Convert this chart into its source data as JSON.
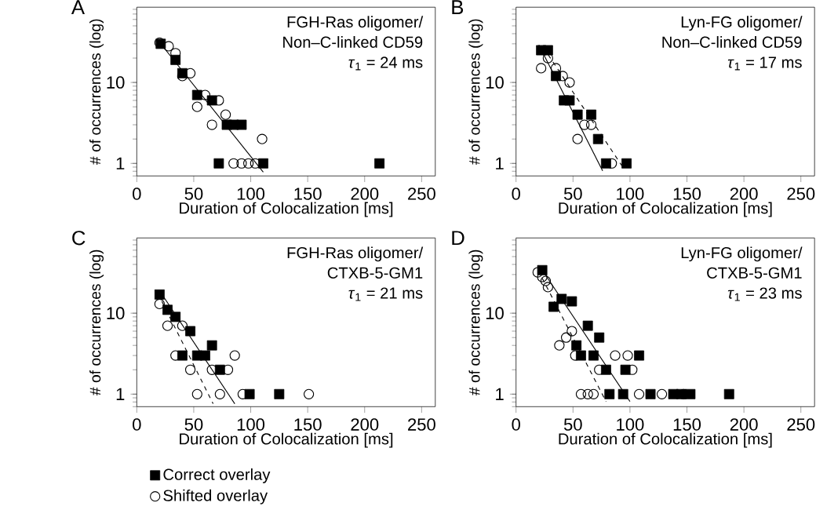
{
  "chart_data": [
    {
      "type": "scatter",
      "xlabel": "Duration of Colocalization  [ms]",
      "ylabel": "# of occurrences (log)",
      "annotations": [
        "A",
        "FGH-Ras oligomer/",
        "Non–C-linked CD59",
        "*τ*$_{1}$  = 24 ms"
      ],
      "xlim": [
        0,
        262
      ],
      "ylim": [
        0.7,
        85
      ],
      "xticks": [
        0,
        50,
        100,
        150,
        200,
        250
      ],
      "yticks": [
        1,
        10
      ],
      "log": "y",
      "series": [
        {
          "color": "#000000",
          "marker": "square",
          "x": [
            21,
            34,
            40,
            53,
            66,
            79,
            85,
            92,
            72,
            111,
            213
          ],
          "values": [
            30,
            19,
            13,
            7,
            6,
            3,
            3,
            3,
            1,
            1,
            1
          ]
        },
        {
          "color": "#000000",
          "marker": "circle",
          "x": [
            20,
            28,
            34,
            40,
            47,
            60,
            53,
            72,
            78,
            66,
            110,
            85,
            92,
            98,
            104
          ],
          "values": [
            31,
            28,
            23,
            12,
            13,
            7,
            5,
            6,
            4,
            3,
            2,
            1,
            1,
            1,
            1
          ]
        },
        {
          "type": "line",
          "color": "#000000",
          "line_style": "solid",
          "x": [
            18,
            111
          ],
          "values": [
            34,
            0.78
          ]
        }
      ]
    },
    {
      "type": "scatter",
      "xlabel": "Duration of Colocalization  [ms]",
      "ylabel": "# of occurrences (log)",
      "annotations": [
        "B",
        "Lyn-FG oligomer/",
        "Non–C-linked CD59",
        "*τ*$_{1}$ = 17 ms"
      ],
      "xlim": [
        0,
        262
      ],
      "ylim": [
        0.7,
        85
      ],
      "xticks": [
        0,
        50,
        100,
        150,
        200,
        250
      ],
      "yticks": [
        1,
        10
      ],
      "log": "y",
      "series": [
        {
          "color": "#000000",
          "marker": "square",
          "x": [
            22,
            28,
            35,
            42,
            47,
            54,
            66,
            72,
            79,
            97
          ],
          "values": [
            25,
            25,
            12,
            6,
            6,
            4,
            4,
            2,
            1,
            1
          ]
        },
        {
          "color": "#000000",
          "marker": "circle",
          "x": [
            22,
            28,
            35,
            41,
            47,
            54,
            60,
            66,
            84
          ],
          "values": [
            15,
            20,
            15,
            12,
            10,
            2,
            3,
            3,
            1
          ]
        },
        {
          "type": "line",
          "color": "#000000",
          "line_style": "solid",
          "x": [
            20,
            76
          ],
          "values": [
            29,
            0.81
          ]
        },
        {
          "type": "line",
          "color": "#000000",
          "line_style": "dashed",
          "x": [
            24,
            93
          ],
          "values": [
            27,
            0.93
          ]
        }
      ]
    },
    {
      "type": "scatter",
      "xlabel": "Duration of Colocalization  [ms]",
      "ylabel": "# of occurrences (log)",
      "annotations": [
        "C",
        "FGH-Ras oligomer/",
        "CTXB-5-GM1",
        "*τ*$_{1}$  = 21 ms"
      ],
      "xlim": [
        0,
        262
      ],
      "ylim": [
        0.7,
        85
      ],
      "xticks": [
        0,
        50,
        100,
        150,
        200,
        250
      ],
      "yticks": [
        1,
        10
      ],
      "log": "y",
      "legend": "bottom",
      "series": [
        {
          "name": "Correct overlay",
          "color": "#000000",
          "marker": "square",
          "x": [
            20,
            27,
            34,
            47,
            40,
            53,
            60,
            66,
            73,
            99,
            125
          ],
          "values": [
            17,
            11,
            9,
            6,
            3,
            3,
            3,
            4,
            2,
            1,
            1
          ]
        },
        {
          "name": "Shifted overlay",
          "color": "#000000",
          "marker": "circle",
          "x": [
            20,
            27,
            40,
            34,
            47,
            66,
            80,
            86,
            53,
            73,
            93,
            151
          ],
          "values": [
            13,
            7,
            7,
            3,
            2,
            2,
            2,
            3,
            1,
            1,
            1,
            1
          ]
        },
        {
          "type": "line",
          "color": "#000000",
          "line_style": "solid",
          "x": [
            21,
            86
          ],
          "values": [
            18,
            0.76
          ]
        },
        {
          "type": "line",
          "color": "#000000",
          "line_style": "dashed",
          "x": [
            22,
            67
          ],
          "values": [
            14,
            0.76
          ]
        }
      ]
    },
    {
      "type": "scatter",
      "xlabel": "Duration of Colocalization  [ms]",
      "ylabel": "# of occurrences (log)",
      "annotations": [
        "D",
        "Lyn-FG oligomer/",
        "CTXB-5-GM1",
        "*τ*$_{1}$  = 23 ms"
      ],
      "xlim": [
        0,
        262
      ],
      "ylim": [
        0.7,
        85
      ],
      "xticks": [
        0,
        50,
        100,
        150,
        200,
        250
      ],
      "yticks": [
        1,
        10
      ],
      "log": "y",
      "series": [
        {
          "color": "#000000",
          "marker": "square",
          "x": [
            23,
            33,
            40,
            49,
            63,
            73,
            53,
            57,
            68,
            79,
            96,
            108,
            82,
            94,
            118,
            138,
            145,
            153,
            187
          ],
          "values": [
            34,
            12,
            15,
            14,
            7,
            5,
            4,
            3,
            3,
            2,
            2,
            3,
            1,
            1,
            1,
            1,
            1,
            1,
            1
          ]
        },
        {
          "color": "#000000",
          "marker": "circle",
          "x": [
            19,
            23,
            26,
            28,
            38,
            44,
            49,
            52,
            73,
            87,
            98,
            102,
            57,
            63,
            68,
            108,
            128,
            147
          ],
          "values": [
            32,
            28,
            25,
            21,
            4,
            5,
            6,
            3,
            2,
            3,
            3,
            2,
            1,
            1,
            1,
            1,
            1,
            1
          ]
        },
        {
          "type": "line",
          "color": "#000000",
          "line_style": "solid",
          "x": [
            23,
            100
          ],
          "values": [
            34,
            0.81
          ]
        },
        {
          "type": "line",
          "color": "#000000",
          "line_style": "dashed",
          "x": [
            23,
            79
          ],
          "values": [
            27,
            0.81
          ]
        }
      ]
    }
  ]
}
